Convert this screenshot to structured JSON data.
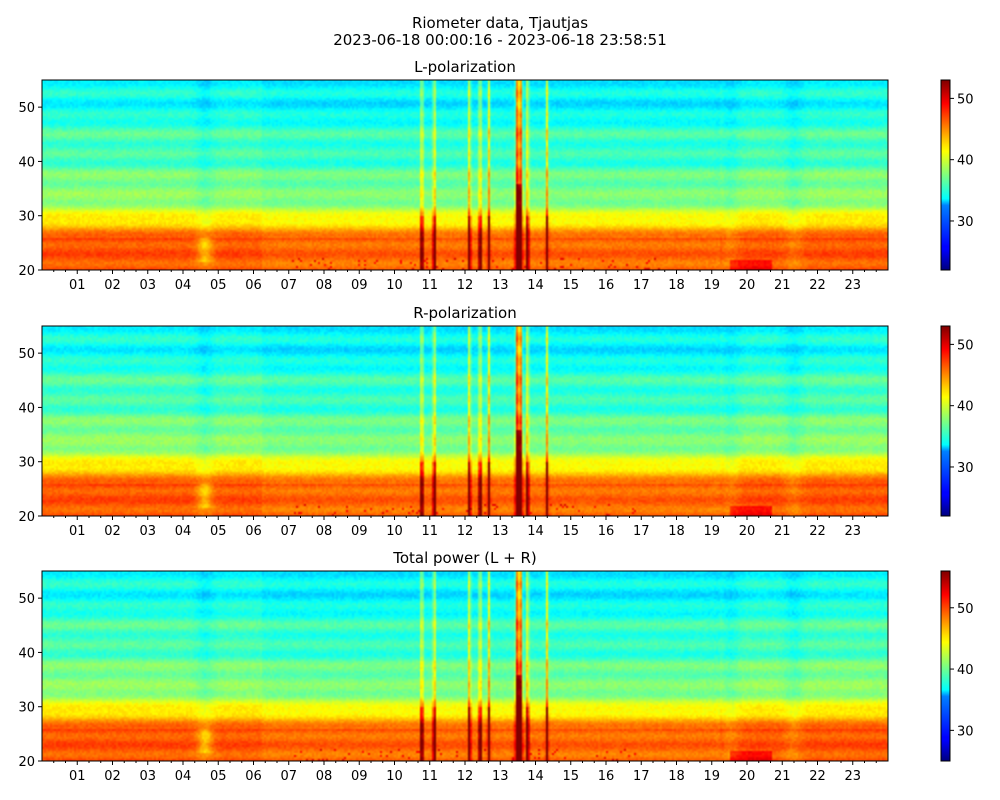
{
  "figure": {
    "title_line1": "Riometer data, Tjautjas",
    "title_line2": "2023-06-18 00:00:16 - 2023-06-18 23:58:51"
  },
  "chart_data": [
    {
      "type": "heatmap",
      "title": "L-polarization",
      "colormap": "jet",
      "x_tick_labels": [
        "01",
        "02",
        "03",
        "04",
        "05",
        "06",
        "07",
        "08",
        "09",
        "10",
        "11",
        "12",
        "13",
        "14",
        "15",
        "16",
        "17",
        "18",
        "19",
        "20",
        "21",
        "22",
        "23"
      ],
      "x_range_hours": [
        0,
        24
      ],
      "y_ticks": [
        20,
        30,
        40,
        50
      ],
      "ylim": [
        20,
        55
      ],
      "colorbar_ticks": [
        30,
        40,
        50
      ],
      "clim": [
        22,
        53
      ],
      "features": {
        "strong_band_y": [
          20,
          26
        ],
        "strong_band_level": 47,
        "background_high_y_level": 35,
        "spike_hours": [
          10.75,
          11.1,
          12.1,
          12.4,
          12.65,
          13.45,
          13.55,
          13.75,
          14.3
        ],
        "main_event_hour": 13.5,
        "dip_hours": [
          4.6,
          19.5,
          21.3
        ]
      }
    },
    {
      "type": "heatmap",
      "title": "R-polarization",
      "colormap": "jet",
      "x_tick_labels": [
        "01",
        "02",
        "03",
        "04",
        "05",
        "06",
        "07",
        "08",
        "09",
        "10",
        "11",
        "12",
        "13",
        "14",
        "15",
        "16",
        "17",
        "18",
        "19",
        "20",
        "21",
        "22",
        "23"
      ],
      "x_range_hours": [
        0,
        24
      ],
      "y_ticks": [
        20,
        30,
        40,
        50
      ],
      "ylim": [
        20,
        55
      ],
      "colorbar_ticks": [
        30,
        40,
        50
      ],
      "clim": [
        22,
        53
      ],
      "features": {
        "strong_band_y": [
          20,
          26
        ],
        "strong_band_level": 47,
        "background_high_y_level": 35,
        "spike_hours": [
          10.75,
          11.1,
          12.1,
          12.4,
          12.65,
          13.45,
          13.55,
          13.75,
          14.3
        ],
        "main_event_hour": 13.5,
        "dip_hours": [
          4.6,
          19.5,
          21.3
        ]
      }
    },
    {
      "type": "heatmap",
      "title": "Total power (L + R)",
      "colormap": "jet",
      "x_tick_labels": [
        "01",
        "02",
        "03",
        "04",
        "05",
        "06",
        "07",
        "08",
        "09",
        "10",
        "11",
        "12",
        "13",
        "14",
        "15",
        "16",
        "17",
        "18",
        "19",
        "20",
        "21",
        "22",
        "23"
      ],
      "x_range_hours": [
        0,
        24
      ],
      "y_ticks": [
        20,
        30,
        40,
        50
      ],
      "ylim": [
        20,
        55
      ],
      "colorbar_ticks": [
        30,
        40,
        50
      ],
      "clim": [
        25,
        56
      ],
      "features": {
        "strong_band_y": [
          20,
          26
        ],
        "strong_band_level": 50,
        "background_high_y_level": 38,
        "spike_hours": [
          10.75,
          11.1,
          12.1,
          12.4,
          12.65,
          13.45,
          13.55,
          13.75,
          14.3
        ],
        "main_event_hour": 13.5,
        "dip_hours": [
          4.6,
          19.5,
          21.3
        ]
      }
    }
  ]
}
